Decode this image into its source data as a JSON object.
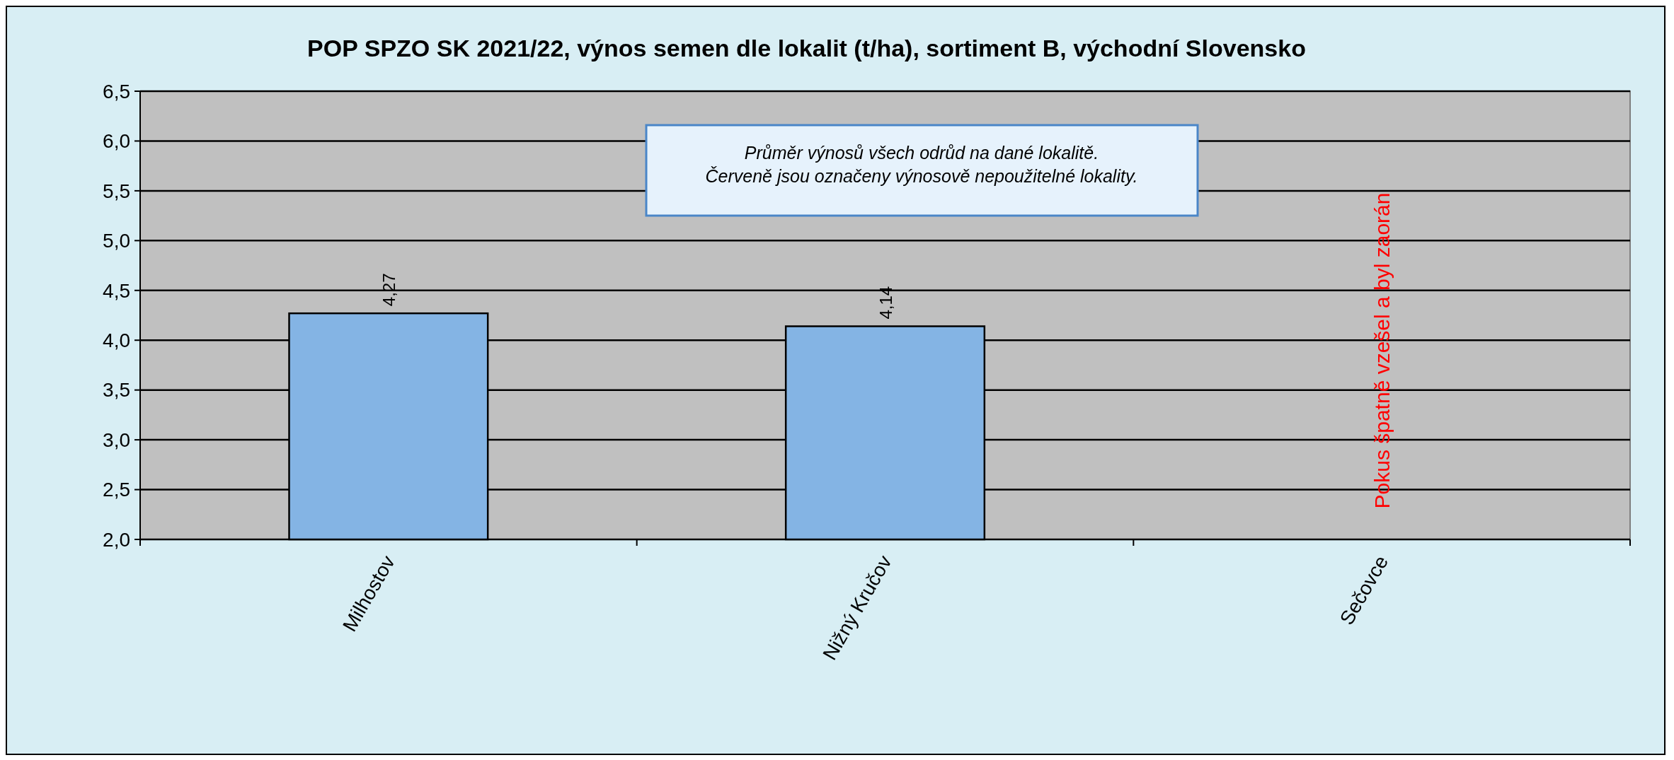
{
  "chart_data": {
    "type": "bar",
    "title": "POP SPZO SK 2021/22, výnos semen dle lokalit (t/ha), sortiment B, východní Slovensko",
    "categories": [
      "Milhostov",
      "Nižný Kručov",
      "Sečovce"
    ],
    "values": [
      4.27,
      4.14,
      null
    ],
    "color": "#84b4e4",
    "value_labels": [
      "4,27",
      "4,14",
      null
    ],
    "ylim": [
      2,
      6.5
    ],
    "yticks": [
      {
        "value": 2,
        "label": "2,0"
      },
      {
        "value": 2.5,
        "label": "2,5"
      },
      {
        "value": 3,
        "label": "3,0"
      },
      {
        "value": 3.5,
        "label": "3,5"
      },
      {
        "value": 4,
        "label": "4,0"
      },
      {
        "value": 4.5,
        "label": "4,5"
      },
      {
        "value": 5,
        "label": "5,0"
      },
      {
        "value": 5.5,
        "label": "5,5"
      },
      {
        "value": 6,
        "label": "6,0"
      },
      {
        "value": 6.5,
        "label": "6,5"
      }
    ],
    "grid": "y",
    "annotations": [
      "Průměr výnosů všech odrůd na dané lokalitě.",
      "Červeně jsou označeny výnosově nepoužitelné lokality.",
      "Pokus špatně vzešel a byl zaorán"
    ]
  }
}
